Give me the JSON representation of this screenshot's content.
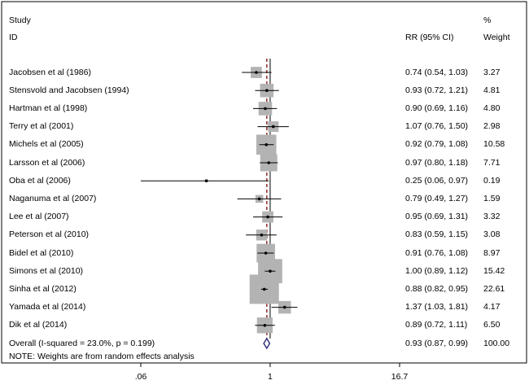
{
  "header": {
    "study_label": "Study",
    "id_label": "ID",
    "rr_label": "RR (95% CI)",
    "percent_label": "%",
    "weight_label": "Weight"
  },
  "note": "NOTE: Weights are from random effects analysis",
  "colors": {
    "frame": "#000000",
    "weight_box": "#b3b3b3",
    "null_line": "#000000",
    "pooled_line": "#8b1a1a",
    "diamond": "#2e2a7a"
  },
  "chart_data": {
    "type": "forest",
    "scale": "log",
    "xlim": [
      0.06,
      16.7
    ],
    "xticks": [
      0.06,
      1,
      16.7
    ],
    "xtick_labels": [
      ".06",
      "1",
      "16.7"
    ],
    "null_value": 1,
    "pooled_rr": 0.93,
    "studies": [
      {
        "label": "Jacobsen et al  (1986)",
        "rr": 0.74,
        "lo": 0.54,
        "hi": 1.03,
        "ci_text": "0.74 (0.54, 1.03)",
        "weight": 3.27,
        "weight_text": "3.27"
      },
      {
        "label": "Stensvold and Jacobsen (1994)",
        "rr": 0.93,
        "lo": 0.72,
        "hi": 1.21,
        "ci_text": "0.93 (0.72, 1.21)",
        "weight": 4.81,
        "weight_text": "4.81"
      },
      {
        "label": "Hartman et al (1998)",
        "rr": 0.9,
        "lo": 0.69,
        "hi": 1.16,
        "ci_text": "0.90 (0.69, 1.16)",
        "weight": 4.8,
        "weight_text": "4.80"
      },
      {
        "label": "Terry et al (2001)",
        "rr": 1.07,
        "lo": 0.76,
        "hi": 1.5,
        "ci_text": "1.07 (0.76, 1.50)",
        "weight": 2.98,
        "weight_text": "2.98"
      },
      {
        "label": "Michels et al (2005)",
        "rr": 0.92,
        "lo": 0.79,
        "hi": 1.08,
        "ci_text": "0.92 (0.79, 1.08)",
        "weight": 10.58,
        "weight_text": "10.58"
      },
      {
        "label": "Larsson et al (2006)",
        "rr": 0.97,
        "lo": 0.8,
        "hi": 1.18,
        "ci_text": "0.97 (0.80, 1.18)",
        "weight": 7.71,
        "weight_text": "7.71"
      },
      {
        "label": "Oba et al  (2006)",
        "rr": 0.25,
        "lo": 0.06,
        "hi": 0.97,
        "ci_text": "0.25 (0.06, 0.97)",
        "weight": 0.19,
        "weight_text": "0.19"
      },
      {
        "label": "Naganuma et al (2007)",
        "rr": 0.79,
        "lo": 0.49,
        "hi": 1.27,
        "ci_text": "0.79 (0.49, 1.27)",
        "weight": 1.59,
        "weight_text": "1.59"
      },
      {
        "label": "Lee et al  (2007)",
        "rr": 0.95,
        "lo": 0.69,
        "hi": 1.31,
        "ci_text": "0.95 (0.69, 1.31)",
        "weight": 3.32,
        "weight_text": "3.32"
      },
      {
        "label": "Peterson et al (2010)",
        "rr": 0.83,
        "lo": 0.59,
        "hi": 1.15,
        "ci_text": "0.83 (0.59, 1.15)",
        "weight": 3.08,
        "weight_text": "3.08"
      },
      {
        "label": "Bidel et al  (2010)",
        "rr": 0.91,
        "lo": 0.76,
        "hi": 1.08,
        "ci_text": "0.91 (0.76, 1.08)",
        "weight": 8.97,
        "weight_text": "8.97"
      },
      {
        "label": "Simons et al (2010)",
        "rr": 1.0,
        "lo": 0.89,
        "hi": 1.12,
        "ci_text": "1.00 (0.89, 1.12)",
        "weight": 15.42,
        "weight_text": "15.42"
      },
      {
        "label": "Sinha et al   (2012)",
        "rr": 0.88,
        "lo": 0.82,
        "hi": 0.95,
        "ci_text": "0.88 (0.82, 0.95)",
        "weight": 22.61,
        "weight_text": "22.61"
      },
      {
        "label": "Yamada et al (2014)",
        "rr": 1.37,
        "lo": 1.03,
        "hi": 1.81,
        "ci_text": "1.37 (1.03, 1.81)",
        "weight": 4.17,
        "weight_text": "4.17"
      },
      {
        "label": "Dik et al  (2014)",
        "rr": 0.89,
        "lo": 0.72,
        "hi": 1.11,
        "ci_text": "0.89 (0.72, 1.11)",
        "weight": 6.5,
        "weight_text": "6.50"
      }
    ],
    "overall": {
      "label": "Overall  (I-squared = 23.0%, p = 0.199)",
      "rr": 0.93,
      "lo": 0.87,
      "hi": 0.99,
      "ci_text": "0.93 (0.87, 0.99)",
      "weight_text": "100.00"
    }
  }
}
